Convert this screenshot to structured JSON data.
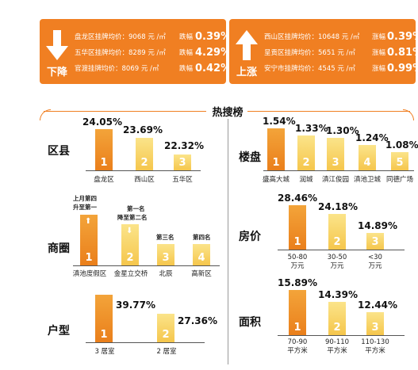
{
  "banner_down": {
    "direction_label": "下降",
    "rows": [
      {
        "text": "盘龙区挂牌均价：9068 元 /㎡",
        "change_label": "跌幅",
        "pct": "0.39%"
      },
      {
        "text": "五华区挂牌均价：8289 元 /㎡",
        "change_label": "跌幅",
        "pct": "4.29%"
      },
      {
        "text": "官渡挂牌均价：8069 元 /㎡",
        "change_label": "跌幅",
        "pct": "0.42%"
      }
    ]
  },
  "banner_up": {
    "direction_label": "上涨",
    "rows": [
      {
        "text": "西山区挂牌均价：10648 元 /㎡",
        "change_label": "涨幅",
        "pct": "0.39%"
      },
      {
        "text": "呈贡区挂牌均价：5651 元 /㎡",
        "change_label": "涨幅",
        "pct": "0.81%"
      },
      {
        "text": "安宁市挂牌均价：4545 元 /㎡",
        "change_label": "涨幅",
        "pct": "0.99%"
      }
    ]
  },
  "hot_search_title": "热搜榜",
  "panels": {
    "district": {
      "label": "区县",
      "bars": [
        {
          "rank": "1",
          "value": "24.05%",
          "category": "盘龙区",
          "level": 24.05
        },
        {
          "rank": "2",
          "value": "23.69%",
          "category": "西山区",
          "level": 23.69
        },
        {
          "rank": "3",
          "value": "22.32%",
          "category": "五华区",
          "level": 22.32
        }
      ]
    },
    "business_area": {
      "label": "商圈",
      "bars": [
        {
          "rank": "1",
          "category": "滇池度假区",
          "note_lines": [
            "上月第四",
            "升至第一"
          ]
        },
        {
          "rank": "2",
          "category": "金星立交桥",
          "note_lines": [
            "第一名",
            "降至第二名"
          ]
        },
        {
          "rank": "3",
          "category": "北辰",
          "note_lines": [
            "第三名"
          ]
        },
        {
          "rank": "4",
          "category": "高新区",
          "note_lines": [
            "第四名"
          ]
        }
      ]
    },
    "layout": {
      "label": "户型",
      "bars": [
        {
          "rank": "1",
          "value": "39.77%",
          "category": "3 居室",
          "level": 39.77
        },
        {
          "rank": "2",
          "value": "27.36%",
          "category": "2 居室",
          "level": 27.36
        }
      ]
    },
    "estate": {
      "label": "楼盘",
      "bars": [
        {
          "rank": "1",
          "value": "1.54%",
          "category": "盛高大城",
          "level": 1.54
        },
        {
          "rank": "2",
          "value": "1.33%",
          "category": "润城",
          "level": 1.33
        },
        {
          "rank": "3",
          "value": "1.30%",
          "category": "滇江俊园",
          "level": 1.3
        },
        {
          "rank": "4",
          "value": "1.24%",
          "category": "滇池卫城",
          "level": 1.24
        },
        {
          "rank": "5",
          "value": "1.08%",
          "category": "同德广场",
          "level": 1.08
        }
      ]
    },
    "price": {
      "label": "房价",
      "bars": [
        {
          "rank": "1",
          "value": "28.46%",
          "category_line1": "50-80",
          "category_line2": "万元",
          "level": 28.46
        },
        {
          "rank": "2",
          "value": "24.18%",
          "category_line1": "30-50",
          "category_line2": "万元",
          "level": 24.18
        },
        {
          "rank": "3",
          "value": "14.89%",
          "category_line1": "<30",
          "category_line2": "万元",
          "level": 14.89
        }
      ]
    },
    "area": {
      "label": "面积",
      "bars": [
        {
          "rank": "1",
          "value": "15.89%",
          "category_line1": "70-90",
          "category_line2": "平方米",
          "level": 15.89
        },
        {
          "rank": "2",
          "value": "14.39%",
          "category_line1": "90-110",
          "category_line2": "平方米",
          "level": 14.39
        },
        {
          "rank": "3",
          "value": "12.44%",
          "category_line1": "110-130",
          "category_line2": "平方米",
          "level": 12.44
        }
      ]
    }
  },
  "colors": {
    "accent": "#f07f22",
    "bar_primary": "#ea7f1b",
    "bar_secondary": "#f5c64c"
  }
}
